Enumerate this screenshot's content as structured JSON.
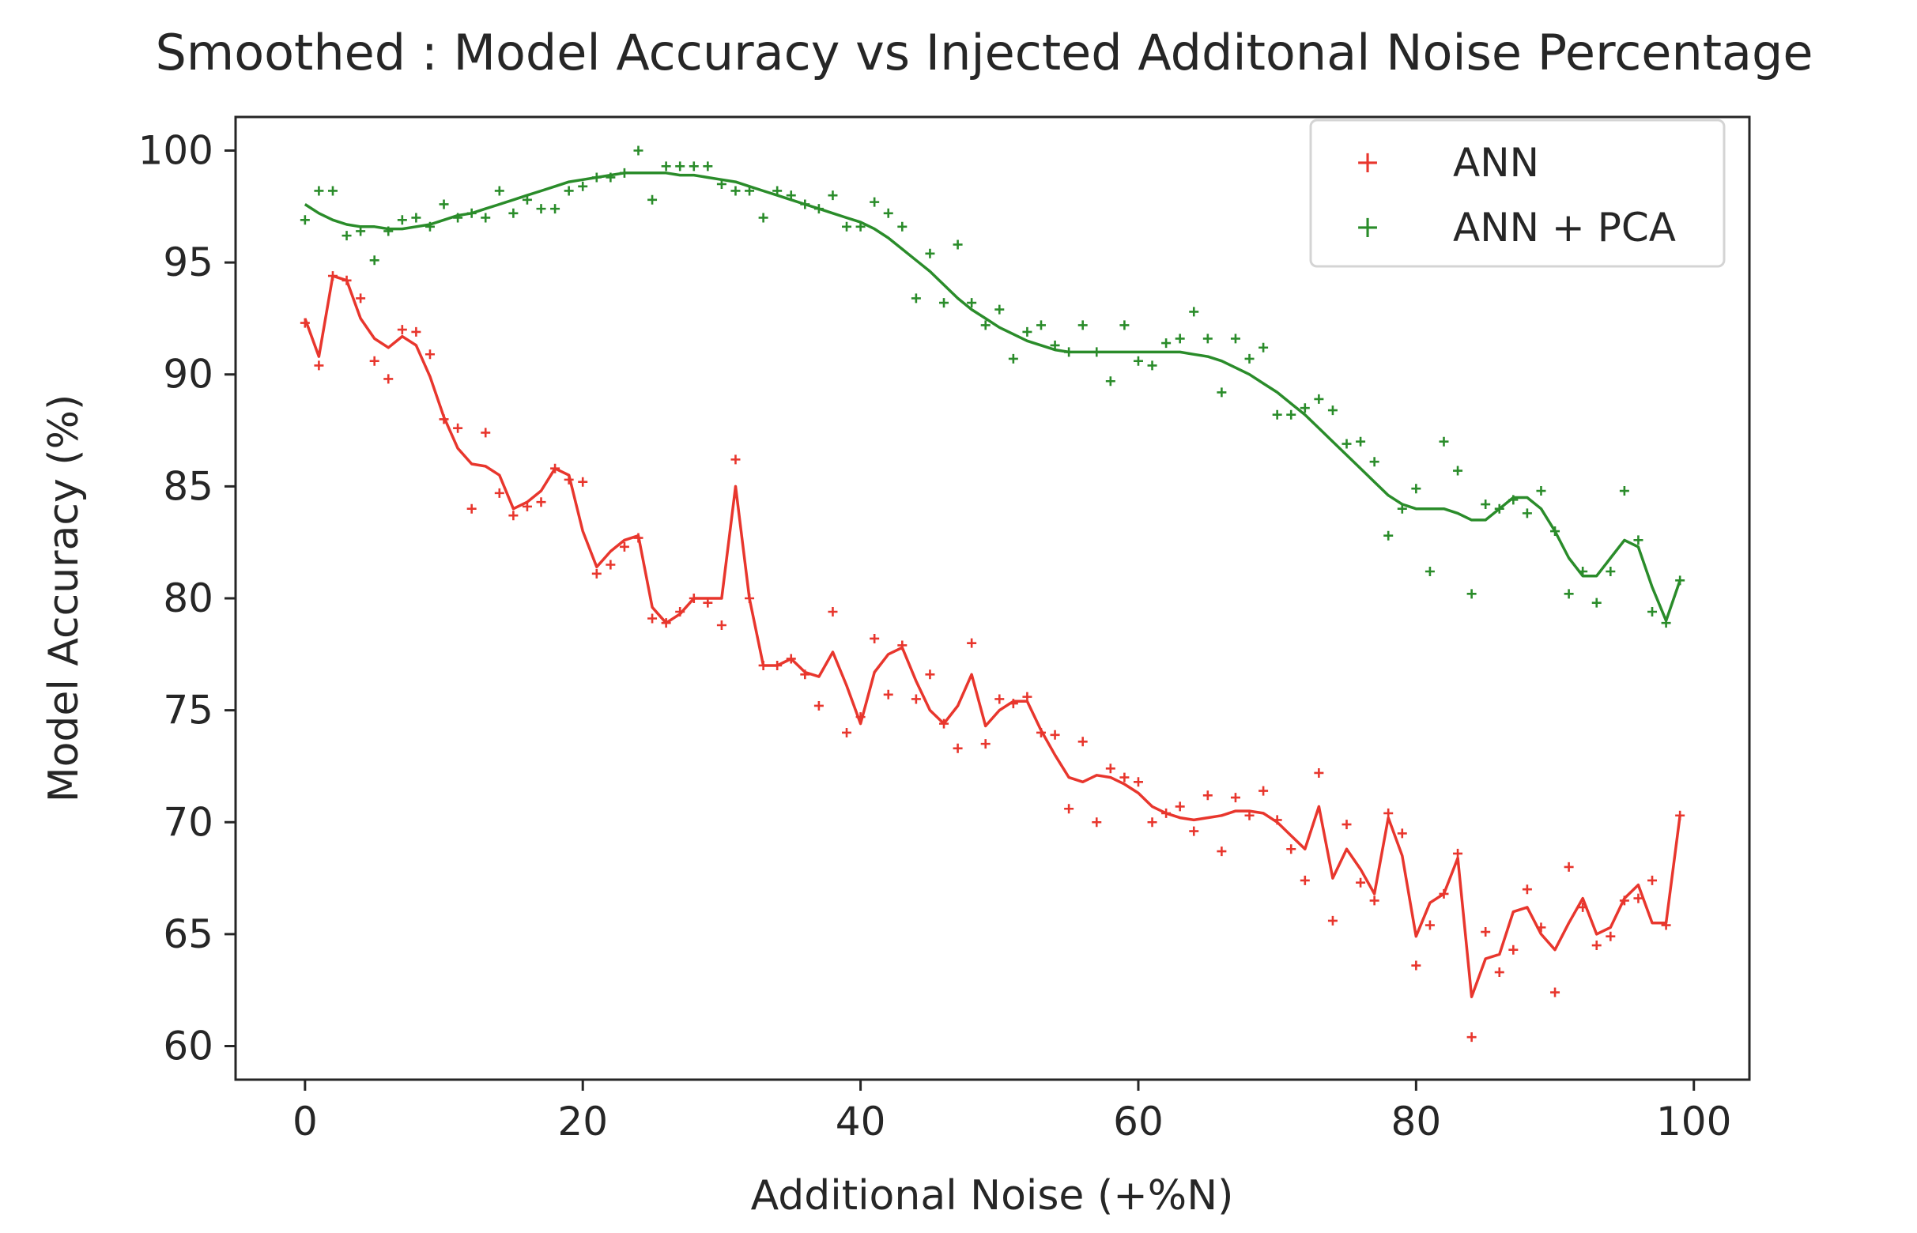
{
  "chart_data": {
    "type": "scatter",
    "title": "Smoothed : Model Accuracy vs Injected Additonal Noise Percentage",
    "xlabel": "Additional Noise (+%N)",
    "ylabel": "Model Accuracy (%)",
    "xlim": [
      -5,
      104
    ],
    "ylim": [
      58.5,
      101.5
    ],
    "xticks": [
      0,
      20,
      40,
      60,
      80,
      100
    ],
    "yticks": [
      60,
      65,
      70,
      75,
      80,
      85,
      90,
      95,
      100
    ],
    "legend_position": "top-right",
    "series": [
      {
        "name": "ANN",
        "color": "#e8362d",
        "x": [
          0,
          1,
          2,
          3,
          4,
          5,
          6,
          7,
          8,
          9,
          10,
          11,
          12,
          13,
          14,
          15,
          16,
          17,
          18,
          19,
          20,
          21,
          22,
          23,
          24,
          25,
          26,
          27,
          28,
          29,
          30,
          31,
          32,
          33,
          34,
          35,
          36,
          37,
          38,
          39,
          40,
          41,
          42,
          43,
          44,
          45,
          46,
          47,
          48,
          49,
          50,
          51,
          52,
          53,
          54,
          55,
          56,
          57,
          58,
          59,
          60,
          61,
          62,
          63,
          64,
          65,
          66,
          67,
          68,
          69,
          70,
          71,
          72,
          73,
          74,
          75,
          76,
          77,
          78,
          79,
          80,
          81,
          82,
          83,
          84,
          85,
          86,
          87,
          88,
          89,
          90,
          91,
          92,
          93,
          94,
          95,
          96,
          97,
          98,
          99
        ],
        "points": [
          92.3,
          90.4,
          94.4,
          94.2,
          93.4,
          90.6,
          89.8,
          92.0,
          91.9,
          90.9,
          88.0,
          87.6,
          84.0,
          87.4,
          84.7,
          83.7,
          84.1,
          84.3,
          85.8,
          85.3,
          85.2,
          81.1,
          81.5,
          82.3,
          82.7,
          79.1,
          78.9,
          79.4,
          80.0,
          79.8,
          78.8,
          86.2,
          80.0,
          77.0,
          77.0,
          77.3,
          76.6,
          75.2,
          79.4,
          74.0,
          74.7,
          78.2,
          75.7,
          77.9,
          75.5,
          76.6,
          74.4,
          73.3,
          78.0,
          73.5,
          75.5,
          75.3,
          75.6,
          74.0,
          73.9,
          70.6,
          73.6,
          70.0,
          72.4,
          72.0,
          71.8,
          70.0,
          70.4,
          70.7,
          69.6,
          71.2,
          68.7,
          71.1,
          70.3,
          71.4,
          70.1,
          68.8,
          67.4,
          72.2,
          65.6,
          69.9,
          67.3,
          66.5,
          70.4,
          69.5,
          63.6,
          65.4,
          66.8,
          68.6,
          60.4,
          65.1,
          63.3,
          64.3,
          67.0,
          65.3,
          62.4,
          68.0,
          66.2,
          64.5,
          64.9,
          66.5,
          66.6,
          67.4,
          65.4,
          70.3
        ],
        "smoothed": [
          92.5,
          90.8,
          94.4,
          94.2,
          92.5,
          91.6,
          91.2,
          91.7,
          91.3,
          89.9,
          88.1,
          86.7,
          86.0,
          85.9,
          85.5,
          84.0,
          84.3,
          84.8,
          85.8,
          85.5,
          83.0,
          81.4,
          82.1,
          82.6,
          82.8,
          79.6,
          78.9,
          79.3,
          80.0,
          80.0,
          80.0,
          85.0,
          80.0,
          77.0,
          77.0,
          77.3,
          76.7,
          76.5,
          77.6,
          76.1,
          74.4,
          76.7,
          77.5,
          77.8,
          76.3,
          75.0,
          74.4,
          75.2,
          76.6,
          74.3,
          75.0,
          75.4,
          75.4,
          74.1,
          73.0,
          72.0,
          71.8,
          72.1,
          72.0,
          71.7,
          71.3,
          70.7,
          70.4,
          70.2,
          70.1,
          70.2,
          70.3,
          70.5,
          70.5,
          70.4,
          70.0,
          69.4,
          68.8,
          70.7,
          67.5,
          68.8,
          67.9,
          66.8,
          70.2,
          68.5,
          64.9,
          66.4,
          66.8,
          68.4,
          62.2,
          63.9,
          64.1,
          66.0,
          66.2,
          65.0,
          64.3,
          65.5,
          66.6,
          65.0,
          65.3,
          66.6,
          67.2,
          65.5,
          65.5,
          70.3
        ]
      },
      {
        "name": "ANN + PCA",
        "color": "#2a8c2a",
        "x": [
          0,
          1,
          2,
          3,
          4,
          5,
          6,
          7,
          8,
          9,
          10,
          11,
          12,
          13,
          14,
          15,
          16,
          17,
          18,
          19,
          20,
          21,
          22,
          23,
          24,
          25,
          26,
          27,
          28,
          29,
          30,
          31,
          32,
          33,
          34,
          35,
          36,
          37,
          38,
          39,
          40,
          41,
          42,
          43,
          44,
          45,
          46,
          47,
          48,
          49,
          50,
          51,
          52,
          53,
          54,
          55,
          56,
          57,
          58,
          59,
          60,
          61,
          62,
          63,
          64,
          65,
          66,
          67,
          68,
          69,
          70,
          71,
          72,
          73,
          74,
          75,
          76,
          77,
          78,
          79,
          80,
          81,
          82,
          83,
          84,
          85,
          86,
          87,
          88,
          89,
          90,
          91,
          92,
          93,
          94,
          95,
          96,
          97,
          98,
          99
        ],
        "points": [
          96.9,
          98.2,
          98.2,
          96.2,
          96.4,
          95.1,
          96.4,
          96.9,
          97.0,
          96.6,
          97.6,
          97.0,
          97.2,
          97.0,
          98.2,
          97.2,
          97.8,
          97.4,
          97.4,
          98.2,
          98.4,
          98.8,
          98.8,
          99.0,
          100.0,
          97.8,
          99.3,
          99.3,
          99.3,
          99.3,
          98.5,
          98.2,
          98.2,
          97.0,
          98.2,
          98.0,
          97.6,
          97.4,
          98.0,
          96.6,
          96.6,
          97.7,
          97.2,
          96.6,
          93.4,
          95.4,
          93.2,
          95.8,
          93.2,
          92.2,
          92.9,
          90.7,
          91.9,
          92.2,
          91.3,
          91.0,
          92.2,
          91.0,
          89.7,
          92.2,
          90.6,
          90.4,
          91.4,
          91.6,
          92.8,
          91.6,
          89.2,
          91.6,
          90.7,
          91.2,
          88.2,
          88.2,
          88.5,
          88.9,
          88.4,
          86.9,
          87.0,
          86.1,
          82.8,
          84.0,
          84.9,
          81.2,
          87.0,
          85.7,
          80.2,
          84.2,
          84.0,
          84.4,
          83.8,
          84.8,
          83.0,
          80.2,
          81.2,
          79.8,
          81.2,
          84.8,
          82.6,
          79.4,
          78.9,
          80.8
        ],
        "smoothed": [
          97.6,
          97.2,
          96.9,
          96.7,
          96.6,
          96.6,
          96.5,
          96.5,
          96.6,
          96.7,
          96.9,
          97.1,
          97.2,
          97.4,
          97.6,
          97.8,
          98.0,
          98.2,
          98.4,
          98.6,
          98.7,
          98.8,
          98.9,
          99.0,
          99.0,
          99.0,
          99.0,
          98.9,
          98.9,
          98.8,
          98.7,
          98.6,
          98.4,
          98.2,
          98.0,
          97.8,
          97.6,
          97.4,
          97.2,
          97.0,
          96.8,
          96.5,
          96.1,
          95.6,
          95.1,
          94.6,
          94.0,
          93.4,
          92.9,
          92.5,
          92.1,
          91.8,
          91.5,
          91.3,
          91.1,
          91.0,
          91.0,
          91.0,
          91.0,
          91.0,
          91.0,
          91.0,
          91.0,
          91.0,
          90.9,
          90.8,
          90.6,
          90.3,
          90.0,
          89.6,
          89.2,
          88.7,
          88.2,
          87.6,
          87.0,
          86.4,
          85.8,
          85.2,
          84.6,
          84.2,
          84.0,
          84.0,
          84.0,
          83.8,
          83.5,
          83.5,
          84.0,
          84.5,
          84.5,
          84.0,
          83.0,
          81.8,
          81.0,
          81.0,
          81.8,
          82.6,
          82.3,
          80.5,
          79.0,
          80.8
        ]
      }
    ]
  }
}
